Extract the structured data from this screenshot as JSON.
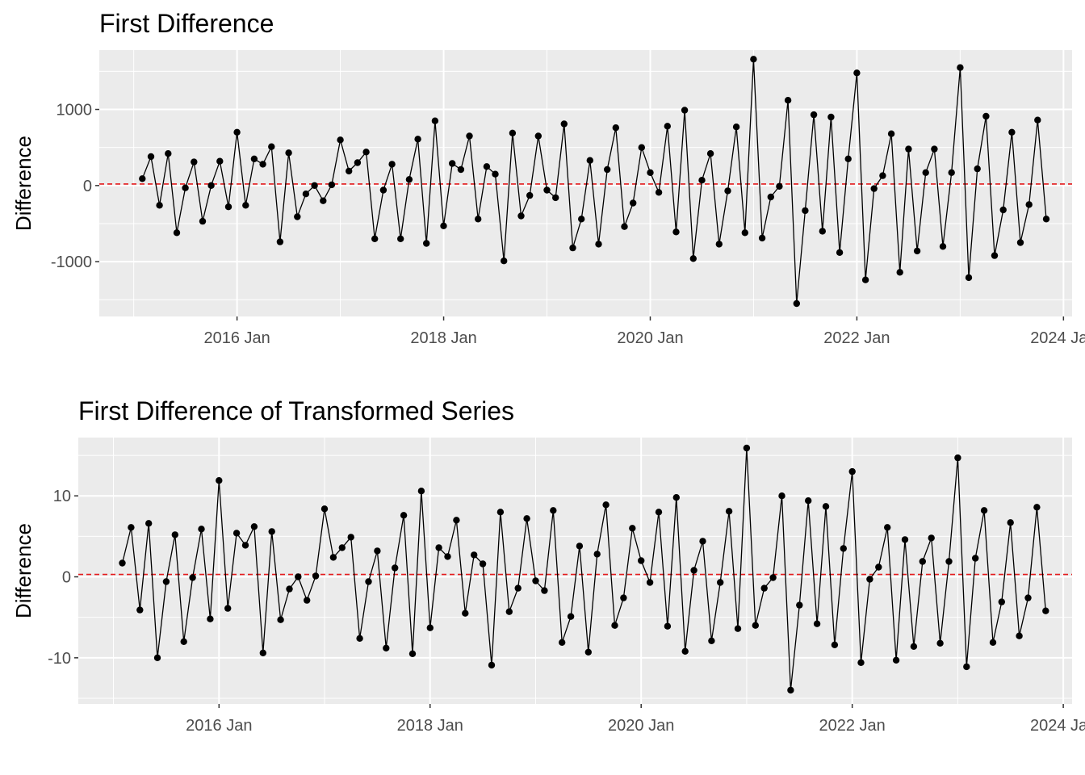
{
  "chart_data": [
    {
      "type": "line",
      "title": "First Difference",
      "xlabel": "",
      "ylabel": "Difference",
      "x_ticks": [
        "2016 Jan",
        "2018 Jan",
        "2020 Jan",
        "2022 Jan",
        "2024 Jan"
      ],
      "y_ticks": [
        "-1000",
        "0",
        "1000"
      ],
      "ylim": [
        -1720,
        1780
      ],
      "xlim": [
        "2014-09",
        "2024-02"
      ],
      "x_start": "2015-02",
      "frequency": "monthly",
      "reference_line": {
        "y": 20,
        "style": "dashed",
        "color": "#e41a1c"
      },
      "series_color": "#000000",
      "values": [
        90,
        380,
        -260,
        420,
        -620,
        -30,
        310,
        -470,
        0,
        320,
        -280,
        700,
        -260,
        350,
        280,
        510,
        -740,
        430,
        -410,
        -110,
        0,
        -200,
        10,
        600,
        190,
        300,
        440,
        -700,
        -60,
        280,
        -700,
        80,
        610,
        -760,
        850,
        -530,
        290,
        210,
        650,
        -440,
        250,
        150,
        -990,
        690,
        -400,
        -130,
        650,
        -60,
        -160,
        810,
        -820,
        -440,
        330,
        -770,
        210,
        760,
        -540,
        -230,
        500,
        170,
        -90,
        780,
        -610,
        990,
        -960,
        70,
        420,
        -770,
        -70,
        770,
        -620,
        1660,
        -690,
        -150,
        -10,
        1120,
        -1550,
        -330,
        930,
        -600,
        900,
        -880,
        350,
        1480,
        -1240,
        -40,
        130,
        680,
        -1140,
        480,
        -860,
        170,
        480,
        -800,
        170,
        1550,
        -1210,
        220,
        910,
        -920,
        -320,
        700,
        -750,
        -250,
        860,
        -440
      ]
    },
    {
      "type": "line",
      "title": "First Difference of Transformed Series",
      "xlabel": "",
      "ylabel": "Difference",
      "x_ticks": [
        "2016 Jan",
        "2018 Jan",
        "2020 Jan",
        "2022 Jan",
        "2024 Jan"
      ],
      "y_ticks": [
        "-10",
        "0",
        "10"
      ],
      "ylim": [
        -15.7,
        17.2
      ],
      "xlim": [
        "2014-09",
        "2024-02"
      ],
      "x_start": "2015-02",
      "frequency": "monthly",
      "reference_line": {
        "y": 0.3,
        "style": "dashed",
        "color": "#e41a1c"
      },
      "series_color": "#000000",
      "values": [
        1.7,
        6.1,
        -4.1,
        6.6,
        -10.0,
        -0.6,
        5.2,
        -8.0,
        -0.1,
        5.9,
        -5.2,
        11.9,
        -3.9,
        5.4,
        3.9,
        6.2,
        -9.4,
        5.6,
        -5.3,
        -1.5,
        0.0,
        -2.9,
        0.1,
        8.4,
        2.4,
        3.6,
        4.9,
        -7.6,
        -0.6,
        3.2,
        -8.8,
        1.1,
        7.6,
        -9.5,
        10.6,
        -6.3,
        3.6,
        2.5,
        7.0,
        -4.5,
        2.7,
        1.6,
        -10.9,
        8.0,
        -4.3,
        -1.4,
        7.2,
        -0.5,
        -1.7,
        8.2,
        -8.1,
        -4.9,
        3.8,
        -9.3,
        2.8,
        8.9,
        -6.0,
        -2.6,
        6.0,
        2.0,
        -0.7,
        8.0,
        -6.1,
        9.8,
        -9.2,
        0.8,
        4.4,
        -7.9,
        -0.7,
        8.1,
        -6.4,
        15.9,
        -6.0,
        -1.4,
        -0.1,
        10.0,
        -14.0,
        -3.5,
        9.4,
        -5.8,
        8.7,
        -8.4,
        3.5,
        13.0,
        -10.6,
        -0.3,
        1.2,
        6.1,
        -10.3,
        4.6,
        -8.6,
        1.9,
        4.8,
        -8.2,
        1.9,
        14.7,
        -11.1,
        2.3,
        8.2,
        -8.1,
        -3.1,
        6.7,
        -7.3,
        -2.6,
        8.6,
        -4.2
      ]
    }
  ]
}
